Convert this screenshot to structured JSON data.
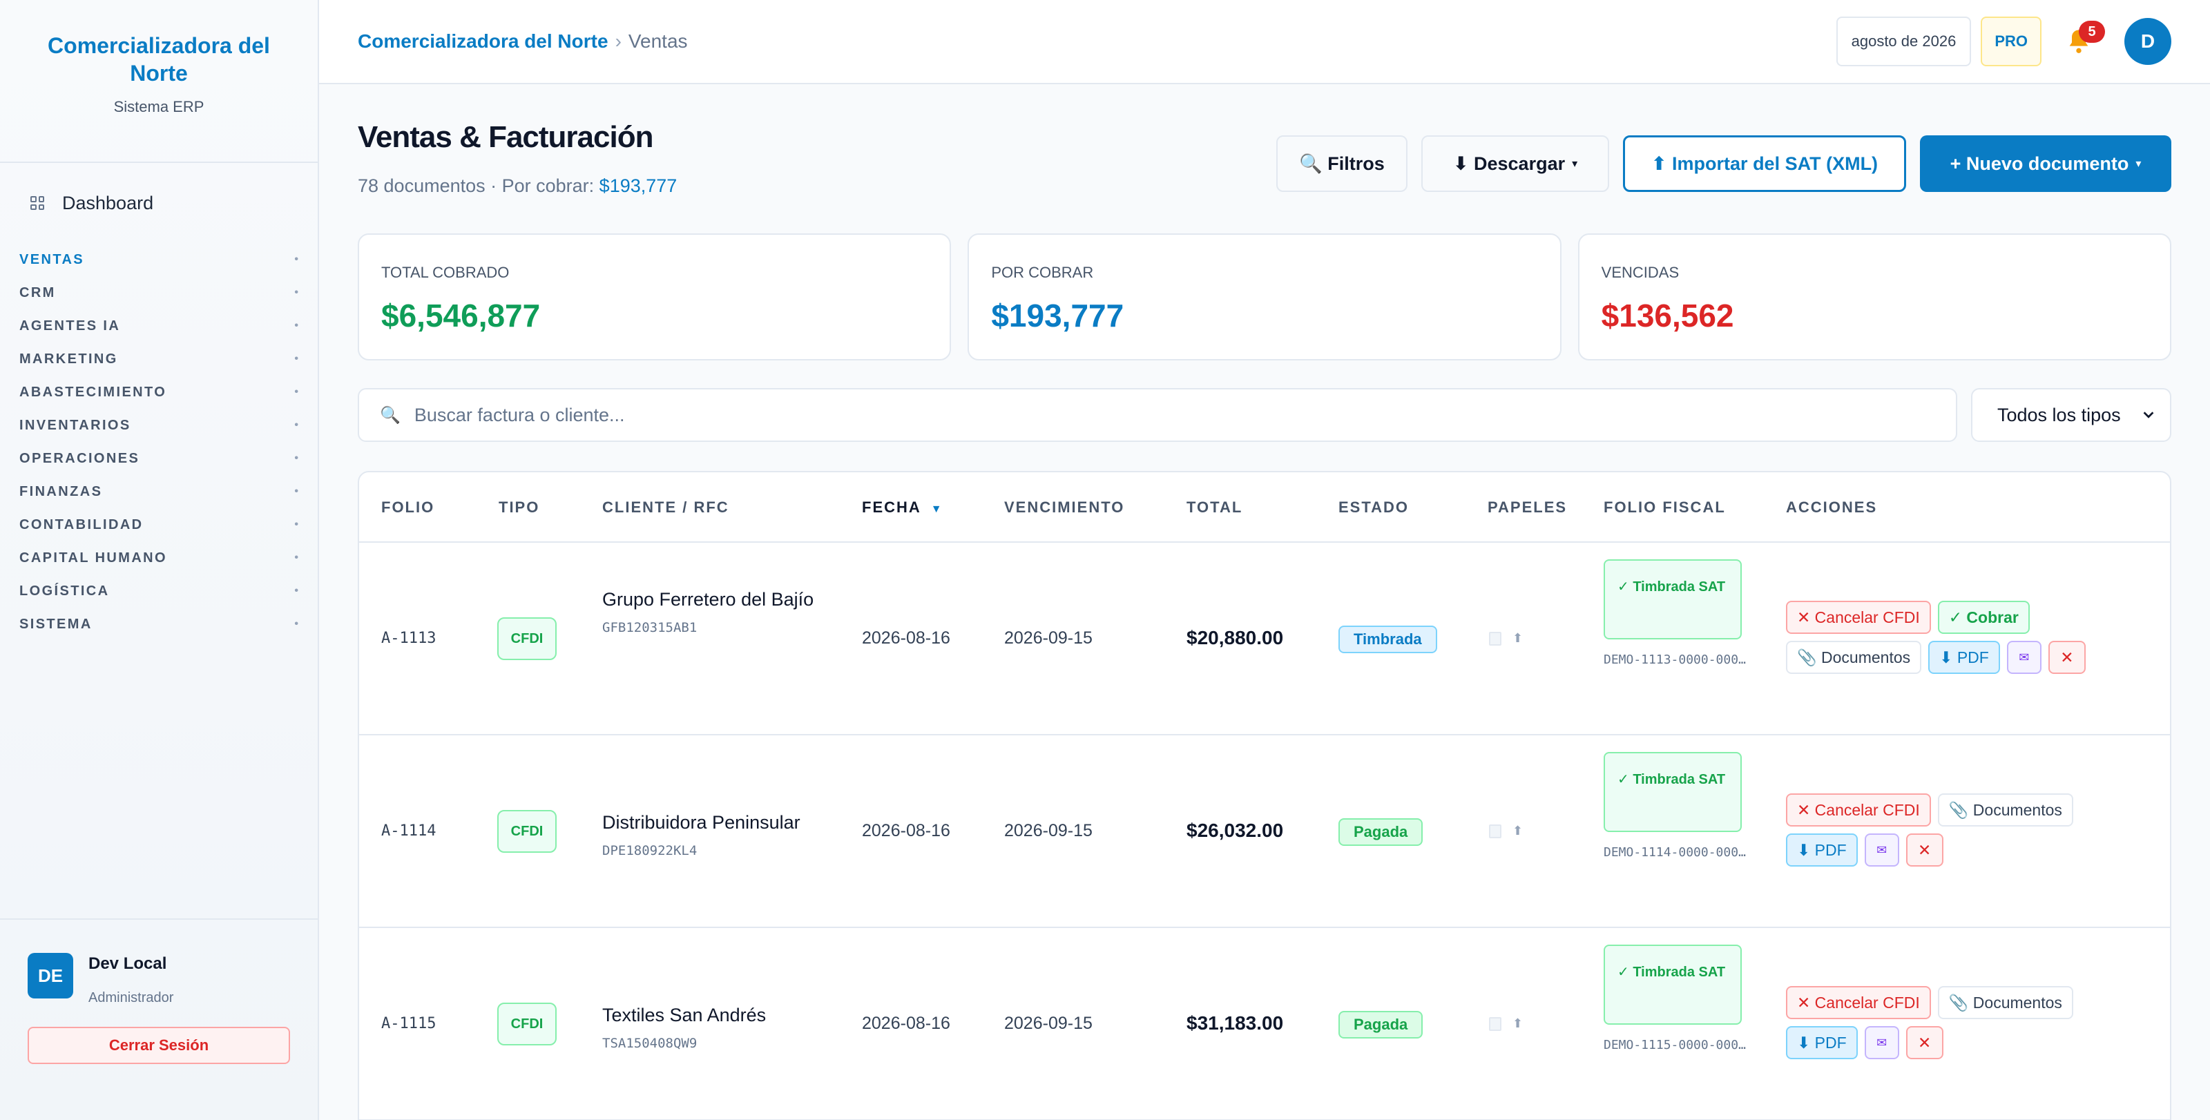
{
  "brand": {
    "name": "Comercializadora del Norte",
    "subtitle": "Sistema ERP"
  },
  "sidebar": {
    "dashboard": "Dashboard",
    "items": [
      {
        "label": "VENTAS",
        "active": true
      },
      {
        "label": "CRM"
      },
      {
        "label": "AGENTES IA"
      },
      {
        "label": "MARKETING"
      },
      {
        "label": "ABASTECIMIENTO"
      },
      {
        "label": "INVENTARIOS"
      },
      {
        "label": "OPERACIONES"
      },
      {
        "label": "FINANZAS"
      },
      {
        "label": "CONTABILIDAD"
      },
      {
        "label": "CAPITAL HUMANO"
      },
      {
        "label": "LOGÍSTICA"
      },
      {
        "label": "SISTEMA"
      }
    ],
    "nav_dot": "•"
  },
  "user": {
    "initials": "DE",
    "name": "Dev Local",
    "role": "Administrador",
    "logout": "Cerrar Sesión"
  },
  "topbar": {
    "breadcrumb_root": "Comercializadora del Norte",
    "breadcrumb_sep": "›",
    "breadcrumb_current": "Ventas",
    "period": "agosto de 2026",
    "plan": "PRO",
    "notifications": "5",
    "avatar": "D"
  },
  "header": {
    "title": "Ventas & Facturación",
    "count": "78 documentos · Por cobrar: ",
    "pending_amount": "$193,777",
    "filters": "🔍 Filtros",
    "download": "⬇ Descargar",
    "import": "⬆ Importar del SAT (XML)",
    "new_doc": "+ Nuevo documento"
  },
  "kpis": [
    {
      "label": "TOTAL COBRADO",
      "value": "$6,546,877",
      "color": "#0f9d58"
    },
    {
      "label": "POR COBRAR",
      "value": "$193,777",
      "color": "#0a7cc4"
    },
    {
      "label": "VENCIDAS",
      "value": "$136,562",
      "color": "#dc2626"
    }
  ],
  "search": {
    "placeholder": "Buscar factura o cliente...",
    "type_filter": "Todos los tipos"
  },
  "table": {
    "columns": [
      "FOLIO",
      "TIPO",
      "CLIENTE / RFC",
      "FECHA",
      "VENCIMIENTO",
      "TOTAL",
      "ESTADO",
      "PAPELES",
      "FOLIO FISCAL",
      "ACCIONES"
    ],
    "rows": [
      {
        "folio": "A-1113",
        "tipo": "CFDI",
        "cliente": "Grupo Ferretero del Bajío",
        "rfc": "GFB120315AB1",
        "fecha": "2026-08-16",
        "vencimiento": "2026-09-15",
        "total": "$20,880.00",
        "estado": "Timbrada",
        "timbre": "✓ Timbrada SAT",
        "folio_fiscal": "DEMO-1113-0000-000…",
        "actions": {
          "cancel": "✕ Cancelar CFDI",
          "cobrar": "✓ Cobrar",
          "docs": "📎 Documentos",
          "pdf": "⬇ PDF",
          "mail": "✉",
          "x": "✕"
        }
      },
      {
        "folio": "A-1114",
        "tipo": "CFDI",
        "cliente": "Distribuidora Peninsular",
        "rfc": "DPE180922KL4",
        "fecha": "2026-08-16",
        "vencimiento": "2026-09-15",
        "total": "$26,032.00",
        "estado": "Pagada",
        "timbre": "✓ Timbrada SAT",
        "folio_fiscal": "DEMO-1114-0000-000…",
        "actions": {
          "cancel": "✕ Cancelar CFDI",
          "docs": "📎 Documentos",
          "pdf": "⬇ PDF",
          "mail": "✉",
          "x": "✕"
        }
      },
      {
        "folio": "A-1115",
        "tipo": "CFDI",
        "cliente": "Textiles San Andrés",
        "rfc": "TSA150408QW9",
        "fecha": "2026-08-16",
        "vencimiento": "2026-09-15",
        "total": "$31,183.00",
        "estado": "Pagada",
        "timbre": "✓ Timbrada SAT",
        "folio_fiscal": "DEMO-1115-0000-000…",
        "actions": {
          "cancel": "✕ Cancelar CFDI",
          "docs": "📎 Documentos",
          "pdf": "⬇ PDF",
          "mail": "✉",
          "x": "✕"
        }
      }
    ]
  }
}
